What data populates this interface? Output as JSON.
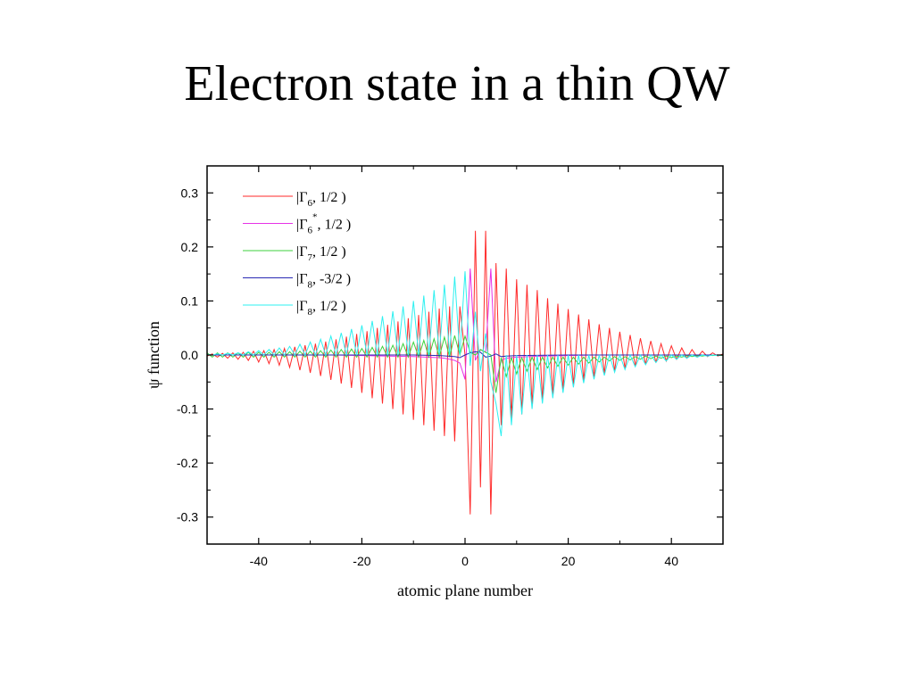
{
  "page": {
    "title": "Electron state in a thin QW"
  },
  "chart_data": {
    "type": "line",
    "title": "",
    "xlabel": "atomic plane number",
    "ylabel": "ψ function",
    "xlim": [
      -50,
      50
    ],
    "ylim": [
      -0.35,
      0.35
    ],
    "x_ticks": [
      -40,
      -20,
      0,
      20,
      40
    ],
    "x_tick_labels": [
      "-40",
      "-20",
      "0",
      "20",
      "40"
    ],
    "y_ticks": [
      0.3,
      0.2,
      0.1,
      0.0,
      -0.1,
      -0.2,
      -0.3
    ],
    "y_tick_labels": [
      "0.3",
      "0.2",
      "0.1",
      "0.0",
      "-0.1",
      "-0.2",
      "-0.3"
    ],
    "grid": false,
    "legend_position": "top-left",
    "legend": [
      {
        "rep": "|Γ",
        "sub": "6",
        "sup": "",
        "state": ",  1/2 )",
        "color": "#ff2a2a"
      },
      {
        "rep": "|Γ",
        "sub": "6",
        "sup": "*",
        "state": ", 1/2 )",
        "color": "#e632e6"
      },
      {
        "rep": "|Γ",
        "sub": "7",
        "sup": "",
        "state": ",  1/2 )",
        "color": "#3ed23e"
      },
      {
        "rep": "|Γ",
        "sub": "8",
        "sup": "",
        "state": ", -3/2 )",
        "color": "#2a2ab4"
      },
      {
        "rep": "|Γ",
        "sub": "8",
        "sup": "",
        "state": ",  1/2 )",
        "color": "#2ef0f0"
      }
    ],
    "series": [
      {
        "color": "#ff2a2a",
        "x": [
          -50,
          -49,
          -48,
          -47,
          -46,
          -45,
          -44,
          -43,
          -42,
          -41,
          -40,
          -39,
          -38,
          -37,
          -36,
          -35,
          -34,
          -33,
          -32,
          -31,
          -30,
          -29,
          -28,
          -27,
          -26,
          -25,
          -24,
          -23,
          -22,
          -21,
          -20,
          -19,
          -18,
          -17,
          -16,
          -15,
          -14,
          -13,
          -12,
          -11,
          -10,
          -9,
          -8,
          -7,
          -6,
          -5,
          -4,
          -3,
          -2,
          -1,
          0,
          1,
          2,
          3,
          4,
          5,
          6,
          7,
          8,
          9,
          10,
          11,
          12,
          13,
          14,
          15,
          16,
          17,
          18,
          19,
          20,
          21,
          22,
          23,
          24,
          25,
          26,
          27,
          28,
          29,
          30,
          31,
          32,
          33,
          34,
          35,
          36,
          37,
          38,
          39,
          40,
          41,
          42,
          43,
          44,
          45,
          46,
          47,
          48,
          49,
          50
        ],
        "y": [
          -0.002,
          0.002,
          -0.004,
          0.003,
          -0.006,
          0.004,
          -0.008,
          0.005,
          -0.01,
          0.007,
          -0.013,
          0.008,
          -0.016,
          0.01,
          -0.019,
          0.012,
          -0.023,
          0.015,
          -0.028,
          0.018,
          -0.033,
          0.021,
          -0.039,
          0.025,
          -0.046,
          0.029,
          -0.053,
          0.034,
          -0.061,
          0.039,
          -0.07,
          0.044,
          -0.08,
          0.05,
          -0.09,
          0.056,
          -0.1,
          0.062,
          -0.11,
          0.068,
          -0.12,
          0.074,
          -0.13,
          0.08,
          -0.14,
          0.086,
          -0.15,
          0.09,
          -0.16,
          0.09,
          0.0,
          -0.295,
          0.23,
          -0.245,
          0.23,
          -0.295,
          0.17,
          -0.13,
          0.16,
          -0.12,
          0.14,
          -0.11,
          0.13,
          -0.095,
          0.12,
          -0.085,
          0.105,
          -0.075,
          0.095,
          -0.065,
          0.085,
          -0.056,
          0.075,
          -0.048,
          0.066,
          -0.041,
          0.057,
          -0.035,
          0.05,
          -0.03,
          0.043,
          -0.025,
          0.037,
          -0.021,
          0.031,
          -0.017,
          0.026,
          -0.014,
          0.021,
          -0.011,
          0.017,
          -0.008,
          0.013,
          -0.006,
          0.01,
          -0.004,
          0.007,
          -0.003,
          0.004,
          -0.002,
          0.002
        ]
      },
      {
        "color": "#e632e6",
        "x": [
          -50,
          -45,
          -40,
          -35,
          -30,
          -25,
          -20,
          -15,
          -10,
          -5,
          -4,
          -3,
          -2,
          -1,
          0,
          1,
          2,
          3,
          4,
          5,
          6,
          7,
          8,
          10,
          15,
          20,
          25,
          30,
          35,
          40,
          45,
          50
        ],
        "y": [
          0,
          0,
          0,
          0,
          0,
          0,
          -0.001,
          -0.002,
          -0.003,
          -0.005,
          -0.006,
          -0.008,
          -0.01,
          -0.015,
          -0.045,
          0.16,
          -0.01,
          0.01,
          0.005,
          0.16,
          -0.05,
          -0.01,
          -0.006,
          -0.004,
          -0.002,
          -0.001,
          0,
          0,
          0,
          0,
          0,
          0
        ]
      },
      {
        "color": "#3ed23e",
        "x": [
          -50,
          -49,
          -48,
          -47,
          -46,
          -45,
          -44,
          -43,
          -42,
          -41,
          -40,
          -39,
          -38,
          -37,
          -36,
          -35,
          -34,
          -33,
          -32,
          -31,
          -30,
          -29,
          -28,
          -27,
          -26,
          -25,
          -24,
          -23,
          -22,
          -21,
          -20,
          -19,
          -18,
          -17,
          -16,
          -15,
          -14,
          -13,
          -12,
          -11,
          -10,
          -9,
          -8,
          -7,
          -6,
          -5,
          -4,
          -3,
          -2,
          -1,
          0,
          1,
          2,
          3,
          4,
          5,
          6,
          7,
          8,
          9,
          10,
          11,
          12,
          13,
          14,
          15,
          16,
          17,
          18,
          19,
          20,
          21,
          22,
          23,
          24,
          25,
          26,
          27,
          28,
          29,
          30,
          31,
          32,
          33,
          34,
          35,
          36,
          37,
          38,
          39,
          40,
          41,
          42,
          43,
          44,
          45,
          46,
          47,
          48,
          49,
          50
        ],
        "y": [
          0.004,
          -0.004,
          0.004,
          -0.004,
          0.004,
          -0.004,
          0.004,
          -0.004,
          0.005,
          -0.004,
          0.005,
          -0.004,
          0.005,
          -0.004,
          0.006,
          -0.004,
          0.006,
          -0.004,
          0.007,
          -0.004,
          0.007,
          -0.004,
          0.008,
          -0.004,
          0.009,
          -0.004,
          0.01,
          -0.004,
          0.011,
          -0.004,
          0.012,
          -0.004,
          0.014,
          -0.004,
          0.016,
          -0.004,
          0.018,
          -0.004,
          0.021,
          -0.004,
          0.024,
          -0.004,
          0.027,
          -0.004,
          0.03,
          -0.004,
          0.033,
          -0.004,
          0.036,
          0.0,
          0.035,
          0.005,
          0.0,
          0.01,
          0.005,
          0.0,
          -0.07,
          -0.005,
          -0.04,
          -0.005,
          -0.035,
          -0.005,
          -0.03,
          -0.004,
          -0.027,
          -0.004,
          -0.024,
          -0.004,
          -0.021,
          -0.004,
          -0.019,
          -0.004,
          -0.017,
          -0.004,
          -0.015,
          -0.004,
          -0.013,
          -0.004,
          -0.011,
          -0.003,
          -0.01,
          -0.003,
          -0.009,
          -0.003,
          -0.008,
          -0.002,
          -0.007,
          -0.002,
          -0.006,
          -0.002,
          -0.005,
          -0.002,
          -0.004,
          -0.001,
          -0.003,
          -0.001,
          -0.002,
          0.0,
          -0.001,
          0.0,
          -0.001
        ]
      },
      {
        "color": "#2a2ab4",
        "x": [
          -50,
          -40,
          -30,
          -20,
          -10,
          -5,
          -2,
          -1,
          0,
          1,
          2,
          3,
          4,
          5,
          6,
          7,
          8,
          10,
          20,
          30,
          40,
          50
        ],
        "y": [
          0,
          0,
          0,
          0,
          0,
          -0.001,
          -0.003,
          -0.005,
          0.0,
          0.004,
          0.006,
          0.005,
          -0.004,
          -0.002,
          0.002,
          -0.003,
          -0.002,
          -0.001,
          0,
          0,
          0,
          0
        ]
      },
      {
        "color": "#2ef0f0",
        "x": [
          -50,
          -49,
          -48,
          -47,
          -46,
          -45,
          -44,
          -43,
          -42,
          -41,
          -40,
          -39,
          -38,
          -37,
          -36,
          -35,
          -34,
          -33,
          -32,
          -31,
          -30,
          -29,
          -28,
          -27,
          -26,
          -25,
          -24,
          -23,
          -22,
          -21,
          -20,
          -19,
          -18,
          -17,
          -16,
          -15,
          -14,
          -13,
          -12,
          -11,
          -10,
          -9,
          -8,
          -7,
          -6,
          -5,
          -4,
          -3,
          -2,
          -1,
          0,
          1,
          2,
          3,
          4,
          5,
          6,
          7,
          8,
          9,
          10,
          11,
          12,
          13,
          14,
          15,
          16,
          17,
          18,
          19,
          20,
          21,
          22,
          23,
          24,
          25,
          26,
          27,
          28,
          29,
          30,
          31,
          32,
          33,
          34,
          35,
          36,
          37,
          38,
          39,
          40,
          41,
          42,
          43,
          44,
          45,
          46,
          47,
          48,
          49,
          50
        ],
        "y": [
          0.001,
          0.0,
          0.002,
          0.0,
          0.003,
          0.0,
          0.004,
          0.0,
          0.006,
          0.0,
          0.008,
          0.0,
          0.01,
          0.0,
          0.013,
          0.0,
          0.016,
          0.0,
          0.02,
          0.0,
          0.024,
          0.0,
          0.029,
          0.0,
          0.035,
          0.0,
          0.041,
          0.0,
          0.048,
          0.0,
          0.055,
          0.0,
          0.063,
          0.0,
          0.072,
          0.0,
          0.081,
          0.0,
          0.09,
          0.0,
          0.1,
          0.0,
          0.11,
          0.0,
          0.12,
          0.0,
          0.13,
          0.0,
          0.145,
          0.0,
          0.155,
          -0.02,
          0.08,
          -0.03,
          0.04,
          -0.05,
          -0.09,
          -0.15,
          0.0,
          -0.13,
          0.0,
          -0.11,
          0.0,
          -0.1,
          0.0,
          -0.09,
          0.0,
          -0.08,
          0.0,
          -0.07,
          0.0,
          -0.06,
          0.0,
          -0.052,
          0.0,
          -0.045,
          0.0,
          -0.038,
          0.0,
          -0.032,
          0.0,
          -0.027,
          0.0,
          -0.022,
          0.0,
          -0.018,
          0.0,
          -0.014,
          0.0,
          -0.011,
          0.0,
          -0.008,
          0.0,
          -0.006,
          0.0,
          -0.004,
          0.0,
          -0.002,
          0.0,
          -0.001,
          0.0
        ]
      }
    ]
  }
}
